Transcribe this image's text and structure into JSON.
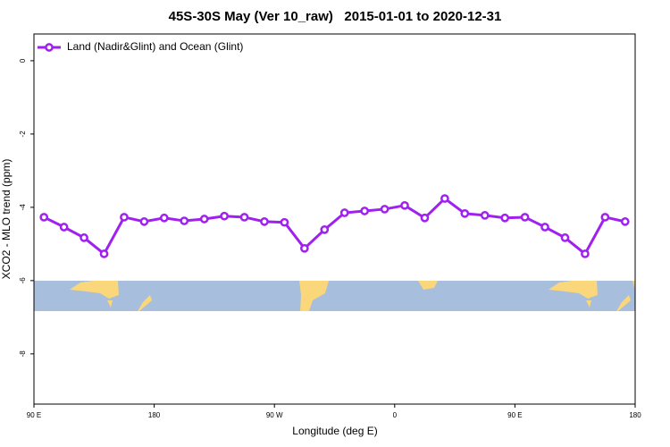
{
  "chart_data": {
    "type": "line",
    "title": "45S-30S May (Ver 10_raw)   2015-01-01 to 2020-12-31",
    "xlabel": "Longitude (deg E)",
    "ylabel": "XCO2 - MLO trend (ppm)",
    "xlim": [
      90,
      540
    ],
    "ylim": [
      -9.37,
      0.73
    ],
    "xticks": [
      {
        "value": 90,
        "label": "90 E"
      },
      {
        "value": 180,
        "label": "180"
      },
      {
        "value": 270,
        "label": "90 W"
      },
      {
        "value": 360,
        "label": "0"
      },
      {
        "value": 450,
        "label": "90 E"
      },
      {
        "value": 540,
        "label": "180"
      }
    ],
    "yticks": [
      0,
      -2,
      -4,
      -6,
      -8
    ],
    "legend": "upper left",
    "grid": false,
    "x": [
      97.5,
      112.5,
      127.5,
      142.5,
      157.5,
      172.5,
      187.5,
      202.5,
      217.5,
      232.5,
      247.5,
      262.5,
      277.5,
      292.5,
      307.5,
      322.5,
      337.5,
      352.5,
      367.5,
      382.5,
      397.5,
      412.5,
      427.5,
      442.5,
      457.5,
      472.5,
      487.5,
      502.5,
      517.5,
      532.5
    ],
    "series": [
      {
        "name": "Land (Nadir&Glint) and Ocean (Glint)",
        "color": "#a020f0",
        "values": [
          -4.27,
          -4.54,
          -4.83,
          -5.27,
          -4.27,
          -4.39,
          -4.29,
          -4.37,
          -4.32,
          -4.24,
          -4.27,
          -4.39,
          -4.41,
          -5.12,
          -4.61,
          -4.15,
          -4.1,
          -4.05,
          -3.95,
          -4.29,
          -3.76,
          -4.17,
          -4.22,
          -4.29,
          -4.27,
          -4.54,
          -4.83,
          -5.27,
          -4.27,
          -4.39
        ]
      }
    ]
  }
}
